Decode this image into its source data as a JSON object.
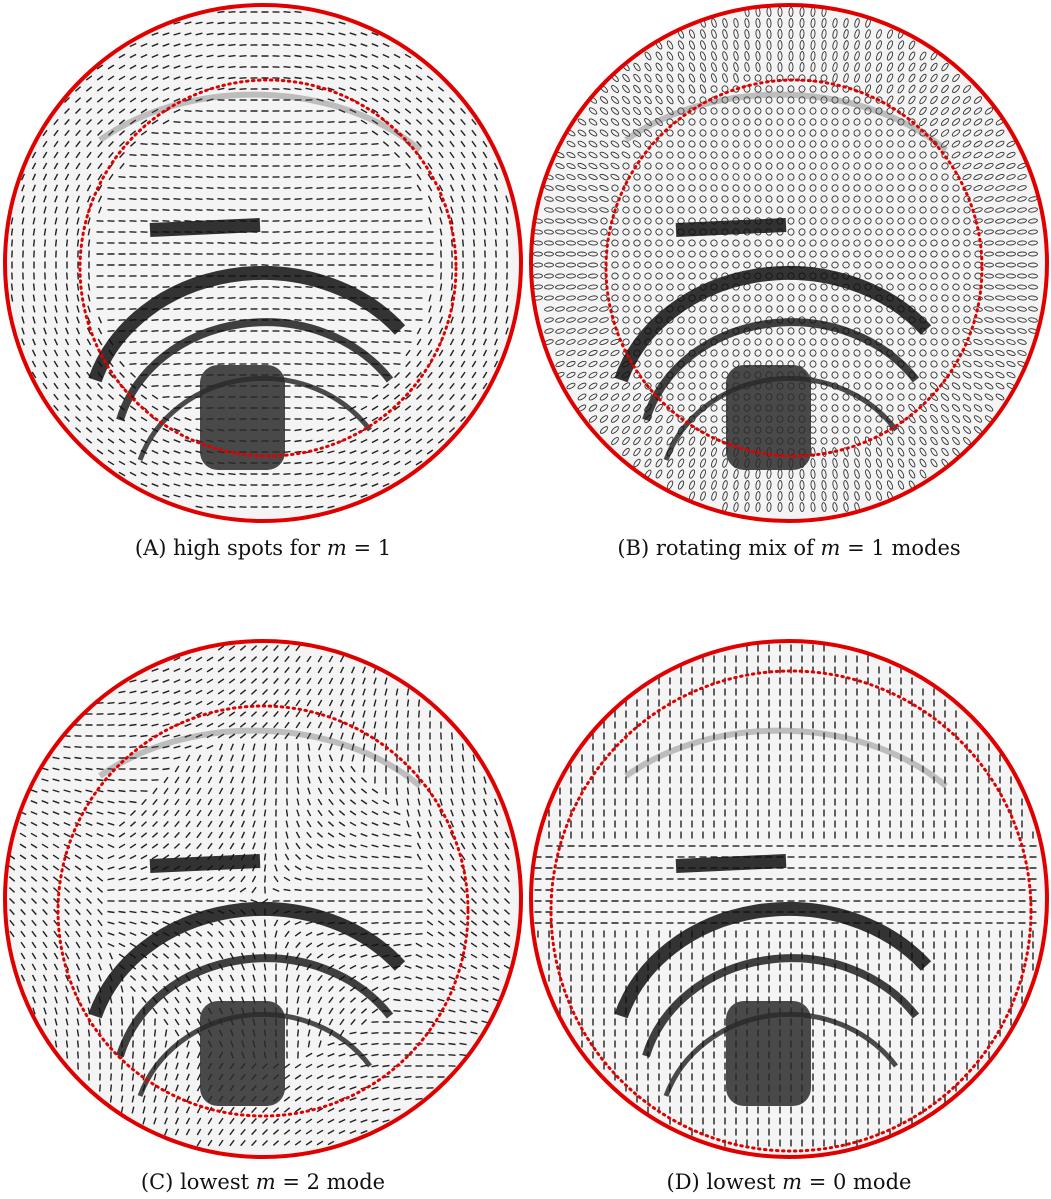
{
  "panels": [
    {
      "label": "(A)",
      "pre": " high spots for ",
      "math_var": "m",
      "math_rest": " = 1",
      "post": "",
      "colors": {
        "boundary": "#e00000",
        "dotted": "#e00000",
        "glyph": "#111111"
      },
      "glyph_style": "dash-vortex"
    },
    {
      "label": "(B)",
      "pre": " rotating mix of ",
      "math_var": "m",
      "math_rest": " = 1",
      "post": " modes",
      "colors": {
        "boundary": "#e00000",
        "dotted": "#e00000",
        "glyph": "#111111"
      },
      "glyph_style": "ellipse"
    },
    {
      "label": "(C)",
      "pre": " lowest ",
      "math_var": "m",
      "math_rest": " = 2",
      "post": " mode",
      "colors": {
        "boundary": "#e00000",
        "dotted": "#e00000",
        "glyph": "#111111"
      },
      "glyph_style": "dash-quadrupole"
    },
    {
      "label": "(D)",
      "pre": " lowest ",
      "math_var": "m",
      "math_rest": " = 0",
      "post": " mode",
      "colors": {
        "boundary": "#e00000",
        "dotted": "#e00000",
        "glyph": "#111111"
      },
      "glyph_style": "dash-radial"
    }
  ]
}
